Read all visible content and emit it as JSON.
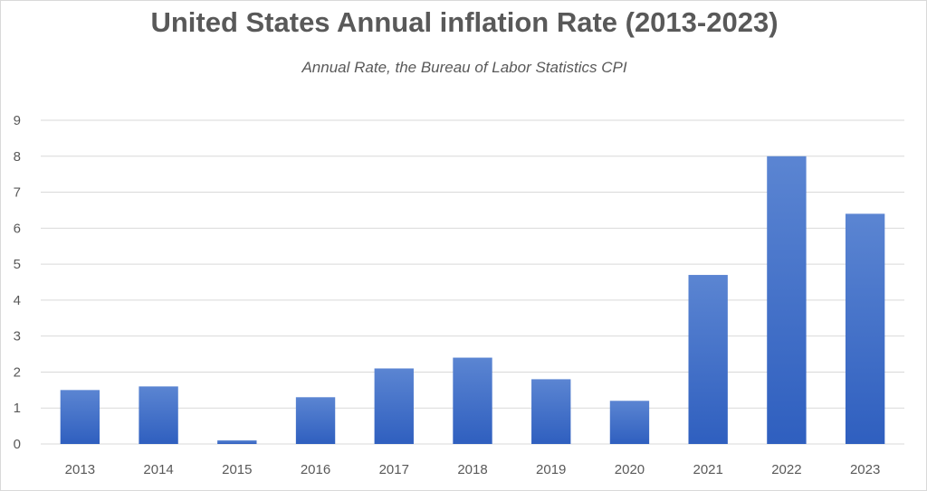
{
  "chart_data": {
    "type": "bar",
    "title": "United States Annual inflation Rate (2013-2023)",
    "subtitle": "Annual Rate, the Bureau of Labor Statistics CPI",
    "categories": [
      "2013",
      "2014",
      "2015",
      "2016",
      "2017",
      "2018",
      "2019",
      "2020",
      "2021",
      "2022",
      "2023"
    ],
    "values": [
      1.5,
      1.6,
      0.1,
      1.3,
      2.1,
      2.4,
      1.8,
      1.2,
      4.7,
      8.0,
      6.4
    ],
    "xlabel": "",
    "ylabel": "",
    "ylim": [
      0,
      9
    ],
    "yticks": [
      "0",
      "1",
      "2",
      "3",
      "4",
      "5",
      "6",
      "7",
      "8",
      "9"
    ],
    "grid": true,
    "legend": "none",
    "colors": {
      "bar_top": "#5b85d2",
      "bar_bottom": "#2f5fbf",
      "grid": "#d9d9d9",
      "text": "#595959"
    }
  }
}
